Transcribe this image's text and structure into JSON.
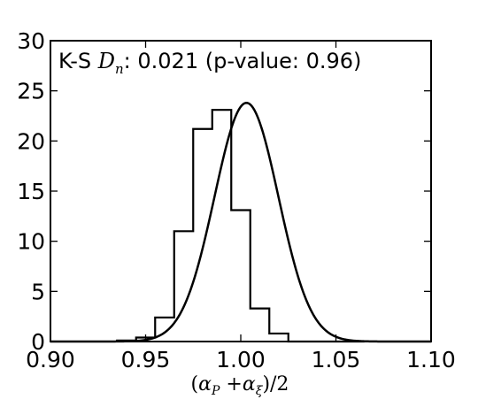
{
  "chart_data": {
    "type": "histogram",
    "title": "",
    "xlabel": "(α_P + α_ξ)/2",
    "xlabel_parts": {
      "open": "(",
      "a1": "α",
      "s1": "P",
      "plus": " +",
      "a2": "α",
      "s2": "ξ",
      "close": ")/2"
    },
    "ylabel": "",
    "xlim": [
      0.9,
      1.1
    ],
    "ylim": [
      0,
      30
    ],
    "xticks": [
      "0.90",
      "0.95",
      "1.00",
      "1.05",
      "1.10"
    ],
    "yticks": [
      "0",
      "5",
      "10",
      "15",
      "20",
      "25",
      "30"
    ],
    "grid": false,
    "annotation": {
      "prefix": "K-S ",
      "stat_symbol": "D",
      "stat_subscript": "n",
      "suffix": ": 0.021 (p-value: 0.96)"
    },
    "histogram": {
      "bin_edges": [
        0.935,
        0.945,
        0.955,
        0.965,
        0.975,
        0.985,
        0.995,
        1.005,
        1.015,
        1.025,
        1.035,
        1.045,
        1.055,
        1.065
      ],
      "values": [
        0.1,
        0.4,
        2.4,
        11.0,
        21.2,
        23.1,
        13.1,
        3.3,
        0.8,
        0.0,
        0.0,
        0.0,
        0.0
      ]
    },
    "fit_curve": {
      "type": "gaussian",
      "mean": 1.003,
      "sigma": 0.0168,
      "peak": 23.8
    }
  }
}
